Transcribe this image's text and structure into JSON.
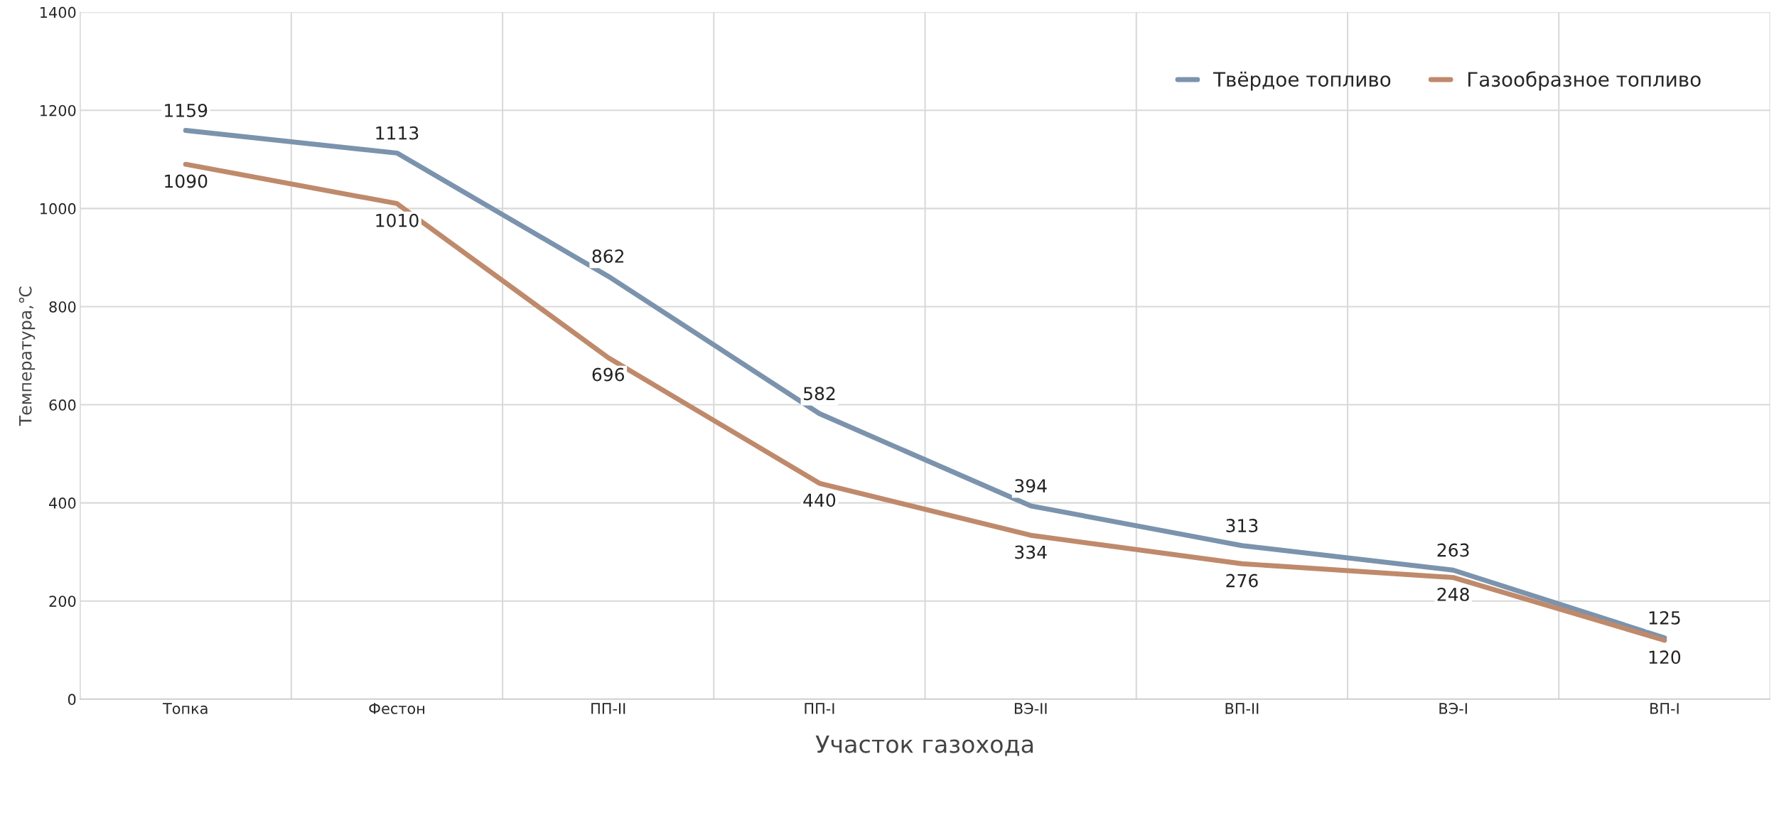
{
  "chart_data": {
    "type": "line",
    "xlabel": "Участок газохода",
    "ylabel": "Температура,℃",
    "categories": [
      "Топка",
      "Фестон",
      "ПП-II",
      "ПП-I",
      "ВЭ-II",
      "ВП-II",
      "ВЭ-I",
      "ВП-I"
    ],
    "series": [
      {
        "name": "Твёрдое топливо",
        "color": "#7b93ad",
        "values": [
          1159,
          1113,
          862,
          582,
          394,
          313,
          263,
          125
        ]
      },
      {
        "name": "Газообразное топливо",
        "color": "#bf8a6b",
        "values": [
          1090,
          1010,
          696,
          440,
          334,
          276,
          248,
          120
        ]
      }
    ],
    "ylim": [
      0,
      1400
    ],
    "yticks": [
      0,
      200,
      400,
      600,
      800,
      1000,
      1200,
      1400
    ],
    "grid": true,
    "legend": "top right",
    "data_labels": true,
    "marker": "none",
    "line_style": "solid"
  }
}
